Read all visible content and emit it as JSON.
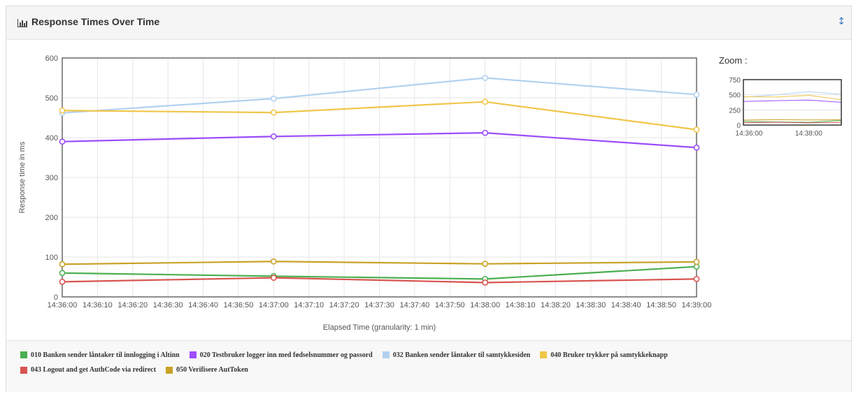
{
  "panel": {
    "title": "Response Times Over Time",
    "title_icon": "bar-chart-icon",
    "collapse_icon": "sort-arrows-icon",
    "zoom_label": "Zoom :"
  },
  "chart_data": {
    "type": "line",
    "xlabel": "Elapsed Time (granularity: 1 min)",
    "ylabel": "Response time in ms",
    "ylim": [
      0,
      600
    ],
    "yticks": [
      0,
      100,
      200,
      300,
      400,
      500,
      600
    ],
    "xlim": [
      "14:36:00",
      "14:39:00"
    ],
    "xticks": [
      "14:36:00",
      "14:36:10",
      "14:36:20",
      "14:36:30",
      "14:36:40",
      "14:36:50",
      "14:37:00",
      "14:37:10",
      "14:37:20",
      "14:37:30",
      "14:37:40",
      "14:37:50",
      "14:38:00",
      "14:38:10",
      "14:38:20",
      "14:38:30",
      "14:38:40",
      "14:38:50",
      "14:39:00"
    ],
    "grid": true,
    "legend_position": "bottom",
    "x": [
      "14:36:00",
      "14:37:00",
      "14:38:00",
      "14:39:00"
    ],
    "series": [
      {
        "name": "010 Banken sender låntaker til innlogging i Altinn",
        "color": "#4caf50",
        "values": [
          60,
          52,
          45,
          76
        ]
      },
      {
        "name": "020 Testbruker logger inn med fødselsnummer og passord",
        "color": "#9c4dfc",
        "values": [
          390,
          403,
          412,
          375
        ]
      },
      {
        "name": "032 Banken sender låntaker til samtykkesiden",
        "color": "#b3d1ef",
        "values": [
          462,
          498,
          550,
          508
        ]
      },
      {
        "name": "040 Bruker trykker på samtykkeknapp",
        "color": "#f0c64a",
        "values": [
          468,
          463,
          490,
          420
        ]
      },
      {
        "name": "043 Logout and get AuthCode via redirect",
        "color": "#d9534f",
        "values": [
          38,
          48,
          36,
          45
        ]
      },
      {
        "name": "050 Verifisere AutToken",
        "color": "#c9a227",
        "values": [
          82,
          89,
          83,
          88
        ]
      }
    ],
    "zoom": {
      "ylim": [
        0,
        750
      ],
      "yticks": [
        0,
        250,
        500,
        750
      ],
      "xticks": [
        "14:36:00",
        "14:38:00"
      ]
    }
  }
}
